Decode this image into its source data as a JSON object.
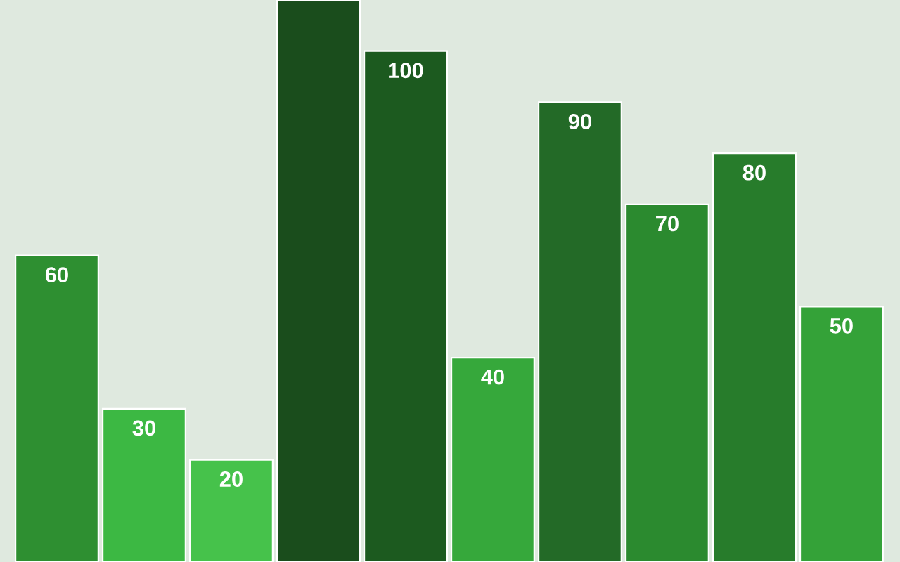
{
  "chart_data": {
    "type": "bar",
    "categories": [
      null,
      null,
      null,
      null,
      null,
      null,
      null,
      null,
      null,
      null
    ],
    "values": [
      60,
      30,
      20,
      110,
      100,
      40,
      90,
      70,
      80,
      50
    ],
    "colors": [
      "#2e8f31",
      "#3cb843",
      "#46c24b",
      "#1a4d1c",
      "#1c5a1f",
      "#36a83b",
      "#236a27",
      "#2b8a2f",
      "#277c2b",
      "#34a238"
    ],
    "value_labels": [
      "60",
      "30",
      "20",
      null,
      "100",
      "40",
      "90",
      "70",
      "80",
      "50"
    ],
    "ylim": [
      0,
      110
    ]
  }
}
